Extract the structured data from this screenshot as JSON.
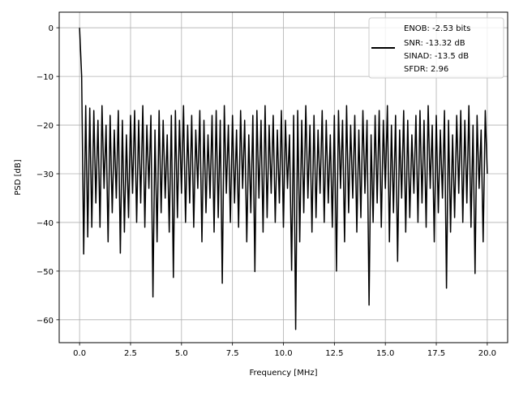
{
  "chart_data": {
    "type": "line",
    "title": "",
    "xlabel": "Frequency [MHz]",
    "ylabel": "PSD [dB]",
    "xlim": [
      -1,
      21
    ],
    "ylim": [
      -64.7,
      3.2
    ],
    "grid": true,
    "legend_placement": "top-right",
    "x_range": [
      0,
      20
    ],
    "xticks": [
      0.0,
      2.5,
      5.0,
      7.5,
      10.0,
      12.5,
      15.0,
      17.5,
      20.0
    ],
    "xtick_labels": [
      "0.0",
      "2.5",
      "5.0",
      "7.5",
      "10.0",
      "12.5",
      "15.0",
      "17.5",
      "20.0"
    ],
    "yticks": [
      0,
      -10,
      -20,
      -30,
      -40,
      -50,
      -60
    ],
    "ytick_labels": [
      "0",
      "−10",
      "−20",
      "−30",
      "−40",
      "−50",
      "−60"
    ],
    "series": [
      {
        "color": "#000000",
        "y": [
          0,
          -10,
          -46.5,
          -16,
          -43,
          -16.5,
          -41,
          -17,
          -36,
          -19,
          -41,
          -16,
          -33,
          -20,
          -44,
          -18,
          -38,
          -21,
          -35,
          -17,
          -46.3,
          -19,
          -42,
          -22,
          -39,
          -18,
          -34,
          -17,
          -40,
          -19,
          -36,
          -16,
          -41,
          -20,
          -33,
          -18,
          -55.3,
          -21,
          -44,
          -17,
          -38,
          -19,
          -35,
          -22,
          -42,
          -18,
          -51.3,
          -17,
          -39,
          -19,
          -34,
          -16,
          -40,
          -20,
          -36,
          -18,
          -41,
          -21,
          -33,
          -17,
          -44,
          -19,
          -38,
          -22,
          -35,
          -18,
          -42,
          -17,
          -39,
          -19,
          -52.5,
          -16,
          -34,
          -20,
          -40,
          -18,
          -36,
          -21,
          -41,
          -17,
          -33,
          -19,
          -44,
          -22,
          -38,
          -18,
          -50.1,
          -17,
          -35,
          -19,
          -42,
          -16,
          -39,
          -20,
          -34,
          -18,
          -40,
          -21,
          -36,
          -17,
          -41,
          -19,
          -33,
          -22,
          -49.8,
          -18,
          -62,
          -17,
          -44,
          -19,
          -38,
          -16,
          -35,
          -20,
          -42,
          -18,
          -39,
          -21,
          -34,
          -17,
          -40,
          -19,
          -36,
          -22,
          -41,
          -18,
          -50,
          -17,
          -33,
          -19,
          -44,
          -16,
          -38,
          -20,
          -35,
          -18,
          -42,
          -21,
          -39,
          -17,
          -34,
          -19,
          -57,
          -22,
          -40,
          -18,
          -36,
          -17,
          -41,
          -19,
          -33,
          -16,
          -44,
          -20,
          -38,
          -18,
          -48,
          -21,
          -35,
          -17,
          -42,
          -19,
          -39,
          -22,
          -34,
          -18,
          -40,
          -17,
          -36,
          -19,
          -41,
          -16,
          -33,
          -20,
          -44,
          -18,
          -38,
          -21,
          -35,
          -17,
          -53.5,
          -19,
          -42,
          -22,
          -39,
          -18,
          -34,
          -17,
          -40,
          -19,
          -36,
          -16,
          -41,
          -20,
          -50.5,
          -18,
          -33,
          -21,
          -44,
          -17,
          -30
        ]
      }
    ],
    "legend": [
      "ENOB: -2.53 bits",
      "SNR: -13.32 dB",
      "SINAD: -13.5 dB",
      "SFDR: 2.96"
    ]
  }
}
